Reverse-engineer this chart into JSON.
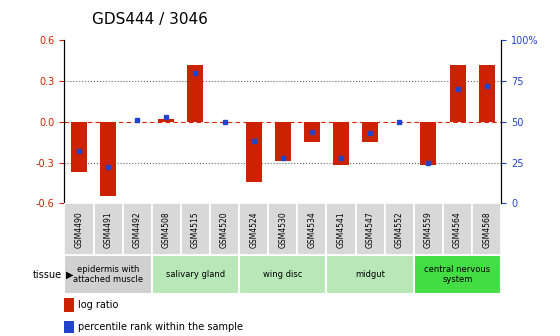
{
  "title": "GDS444 / 3046",
  "samples": [
    "GSM4490",
    "GSM4491",
    "GSM4492",
    "GSM4508",
    "GSM4515",
    "GSM4520",
    "GSM4524",
    "GSM4530",
    "GSM4534",
    "GSM4541",
    "GSM4547",
    "GSM4552",
    "GSM4559",
    "GSM4564",
    "GSM4568"
  ],
  "log_ratio": [
    -0.37,
    -0.55,
    0.0,
    0.02,
    0.42,
    0.0,
    -0.44,
    -0.29,
    -0.15,
    -0.32,
    -0.15,
    0.0,
    -0.32,
    0.42,
    0.42
  ],
  "percentile": [
    32,
    22,
    51,
    53,
    80,
    50,
    38,
    28,
    44,
    28,
    43,
    50,
    25,
    70,
    72
  ],
  "ylim": [
    -0.6,
    0.6
  ],
  "yticks_left": [
    -0.6,
    -0.3,
    0.0,
    0.3,
    0.6
  ],
  "yticks_right": [
    0,
    25,
    50,
    75,
    100
  ],
  "hlines": [
    -0.3,
    0.0,
    0.3
  ],
  "tissue_groups": [
    {
      "label": "epidermis with\nattached muscle",
      "start": 0,
      "end": 3,
      "color": "#d0d0d0"
    },
    {
      "label": "salivary gland",
      "start": 3,
      "end": 6,
      "color": "#b8e8b8"
    },
    {
      "label": "wing disc",
      "start": 6,
      "end": 9,
      "color": "#b8e8b8"
    },
    {
      "label": "midgut",
      "start": 9,
      "end": 12,
      "color": "#b8e8b8"
    },
    {
      "label": "central nervous\nsystem",
      "start": 12,
      "end": 15,
      "color": "#44dd44"
    }
  ],
  "bar_color": "#cc2200",
  "dot_color": "#2244cc",
  "zero_line_color": "#dd2200",
  "grid_color": "#666666",
  "title_fontsize": 11,
  "bar_width": 0.55,
  "sample_box_color": "#d8d8d8",
  "bg_color": "#ffffff"
}
